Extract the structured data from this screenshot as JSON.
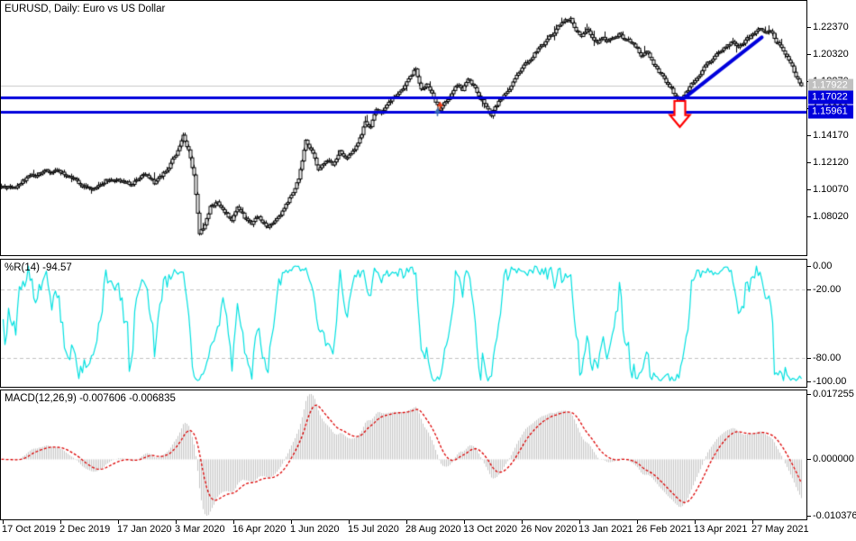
{
  "window_title": "EURUSD, Daily: Euro vs US Dollar",
  "panels": {
    "main": {
      "title_label": "EURUSD, Daily: Euro vs US Dollar"
    },
    "wpr": {
      "label": "%R(14) -94.57"
    },
    "macd": {
      "label": "MACD(12,26,9) -0.007606 -0.006835"
    }
  },
  "colors": {
    "candle": "#000000",
    "price_line_grey": "#C9C9C9",
    "price_box_grey": "#C0C0C0",
    "hline_blue": "#0000DC",
    "trend_blue": "#0000DC",
    "arrow_red": "#FF0000",
    "wpr_cyan": "#00E0E0",
    "grid_dash_grey": "#C0C0C0",
    "macd_hist_silver": "#C4C4C4",
    "macd_signal_red": "#DC0000",
    "marker_red": "#E8401C",
    "marker_blue": "#3B6FB6"
  },
  "chart_data": {
    "type": "candlestick",
    "symbol": "EURUSD",
    "timeframe": "Daily",
    "candle_count": 445,
    "x_labels": [
      "17 Oct 2019",
      "2 Dec 2019",
      "17 Jan 2020",
      "3 Mar 2020",
      "16 Apr 2020",
      "1 Jun 2020",
      "15 Jul 2020",
      "28 Aug 2020",
      "13 Oct 2020",
      "26 Nov 2020",
      "13 Jan 2021",
      "26 Feb 2021",
      "13 Apr 2021",
      "27 May 2021"
    ],
    "y_axis": {
      "tick_labels": [
        "1.22370",
        "1.20320",
        "1.18270",
        "1.16220",
        "1.14170",
        "1.12120",
        "1.10070",
        "1.08020"
      ],
      "tick_prices": [
        1.2237,
        1.2032,
        1.1827,
        1.1622,
        1.1417,
        1.1212,
        1.1007,
        1.0802
      ]
    },
    "current_price": {
      "value": 1.17922,
      "label": "1.17922"
    },
    "hlines": [
      {
        "price": 1.17022,
        "label": "1.17022"
      },
      {
        "price": 1.15961,
        "label": "1.15961"
      }
    ],
    "trendline": {
      "from_index": 375.5,
      "from_price": 1.1662,
      "to_index": 422,
      "to_price": 1.2158
    },
    "arrow_down": {
      "index": 376.5,
      "from_price": 1.1676,
      "to_price": 1.148
    },
    "trade_markers": [
      {
        "index": 243.5,
        "price": 1.1646,
        "color_key": "marker_red"
      },
      {
        "index": 242.0,
        "price": 1.1596,
        "color_key": "marker_blue"
      }
    ],
    "close_waypoints": [
      [
        0,
        1.1041
      ],
      [
        7,
        1.1014
      ],
      [
        11,
        1.1062
      ],
      [
        17,
        1.1116
      ],
      [
        24,
        1.1137
      ],
      [
        30,
        1.1157
      ],
      [
        37,
        1.1102
      ],
      [
        44,
        1.1041
      ],
      [
        51,
        1.0993
      ],
      [
        58,
        1.1082
      ],
      [
        65,
        1.1075
      ],
      [
        72,
        1.1048
      ],
      [
        79,
        1.1116
      ],
      [
        85,
        1.1055
      ],
      [
        92,
        1.1157
      ],
      [
        98,
        1.1301
      ],
      [
        101,
        1.1403
      ],
      [
        104,
        1.1301
      ],
      [
        107,
        1.1103
      ],
      [
        110,
        1.0679
      ],
      [
        113,
        1.0734
      ],
      [
        116,
        1.0877
      ],
      [
        120,
        1.0911
      ],
      [
        124,
        1.0816
      ],
      [
        128,
        1.0781
      ],
      [
        131,
        1.0884
      ],
      [
        135,
        1.0795
      ],
      [
        139,
        1.0754
      ],
      [
        143,
        1.0808
      ],
      [
        148,
        1.072
      ],
      [
        152,
        1.0774
      ],
      [
        156,
        1.0843
      ],
      [
        160,
        1.0938
      ],
      [
        165,
        1.1075
      ],
      [
        169,
        1.1362
      ],
      [
        173,
        1.1266
      ],
      [
        176,
        1.115
      ],
      [
        180,
        1.1218
      ],
      [
        184,
        1.1191
      ],
      [
        188,
        1.1301
      ],
      [
        192,
        1.1239
      ],
      [
        196,
        1.1294
      ],
      [
        200,
        1.1417
      ],
      [
        202,
        1.1512
      ],
      [
        205,
        1.1478
      ],
      [
        208,
        1.1615
      ],
      [
        211,
        1.1581
      ],
      [
        216,
        1.1683
      ],
      [
        220,
        1.1731
      ],
      [
        224,
        1.1785
      ],
      [
        227,
        1.1861
      ],
      [
        230,
        1.1929
      ],
      [
        233,
        1.1765
      ],
      [
        236,
        1.1806
      ],
      [
        240,
        1.1703
      ],
      [
        243,
        1.1608
      ],
      [
        246,
        1.1676
      ],
      [
        249,
        1.171
      ],
      [
        253,
        1.1799
      ],
      [
        256,
        1.1765
      ],
      [
        259,
        1.184
      ],
      [
        262,
        1.1785
      ],
      [
        265,
        1.1717
      ],
      [
        269,
        1.1649
      ],
      [
        272,
        1.1567
      ],
      [
        276,
        1.1676
      ],
      [
        280,
        1.1738
      ],
      [
        283,
        1.1792
      ],
      [
        286,
        1.1867
      ],
      [
        289,
        1.1922
      ],
      [
        292,
        1.197
      ],
      [
        295,
        1.2018
      ],
      [
        298,
        1.2065
      ],
      [
        301,
        1.21
      ],
      [
        304,
        1.2154
      ],
      [
        307,
        1.2195
      ],
      [
        310,
        1.225
      ],
      [
        313,
        1.2291
      ],
      [
        316,
        1.2305
      ],
      [
        319,
        1.2223
      ],
      [
        322,
        1.2168
      ],
      [
        325,
        1.2209
      ],
      [
        328,
        1.2168
      ],
      [
        331,
        1.212
      ],
      [
        334,
        1.2161
      ],
      [
        337,
        1.2134
      ],
      [
        340,
        1.2154
      ],
      [
        343,
        1.2181
      ],
      [
        346,
        1.2147
      ],
      [
        349,
        1.212
      ],
      [
        352,
        1.2086
      ],
      [
        355,
        1.2031
      ],
      [
        358,
        1.2058
      ],
      [
        361,
        1.1976
      ],
      [
        364,
        1.1915
      ],
      [
        367,
        1.1867
      ],
      [
        370,
        1.1805
      ],
      [
        373,
        1.1737
      ],
      [
        376,
        1.1669
      ],
      [
        379,
        1.1717
      ],
      [
        382,
        1.1778
      ],
      [
        385,
        1.184
      ],
      [
        388,
        1.1888
      ],
      [
        391,
        1.1949
      ],
      [
        394,
        1.199
      ],
      [
        397,
        1.2031
      ],
      [
        400,
        1.2058
      ],
      [
        403,
        1.21
      ],
      [
        406,
        1.212
      ],
      [
        409,
        1.2086
      ],
      [
        412,
        1.2127
      ],
      [
        415,
        1.2154
      ],
      [
        418,
        1.2188
      ],
      [
        421,
        1.2215
      ],
      [
        424,
        1.2181
      ],
      [
        427,
        1.2202
      ],
      [
        430,
        1.2134
      ],
      [
        433,
        1.2086
      ],
      [
        436,
        1.2018
      ],
      [
        439,
        1.1936
      ],
      [
        441,
        1.1861
      ],
      [
        444,
        1.1792
      ]
    ],
    "wpr": {
      "period": 14,
      "current": -94.57,
      "axis_ticks": [
        {
          "value": 0,
          "label": "0.00"
        },
        {
          "value": -20,
          "label": "-20.00"
        },
        {
          "value": -80,
          "label": "-80.00"
        },
        {
          "value": -100,
          "label": "-100.00"
        }
      ],
      "dashed_levels": [
        -20,
        -80
      ]
    },
    "macd": {
      "fast": 12,
      "slow": 26,
      "signal": 9,
      "current_macd": -0.007606,
      "current_signal": -0.006835,
      "axis_top_label": "0.017255",
      "axis_zero_label": "0.000000",
      "axis_bottom_label": "-0.010376"
    }
  }
}
